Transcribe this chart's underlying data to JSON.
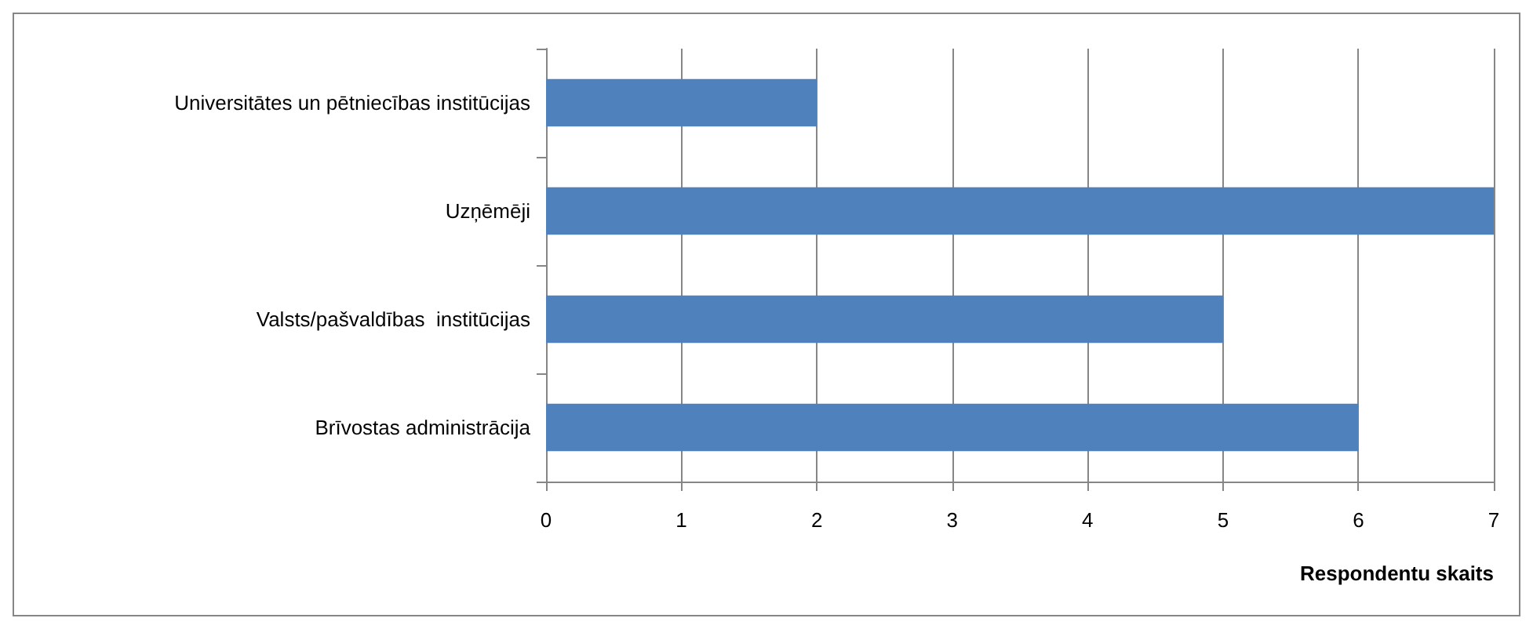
{
  "chart_data": {
    "type": "bar",
    "orientation": "horizontal",
    "xlabel": "Respondentu skaits",
    "categories": [
      "Universitātes un pētniecības institūcijas",
      "Uzņēmēji",
      "Valsts/pašvaldības  institūcijas",
      "Brīvostas administrācija"
    ],
    "values": [
      2,
      7,
      5,
      6
    ],
    "color": "#4f81bd",
    "xlim": [
      0,
      7
    ],
    "xticks": [
      0,
      1,
      2,
      3,
      4,
      5,
      6,
      7
    ],
    "grid": "x"
  }
}
